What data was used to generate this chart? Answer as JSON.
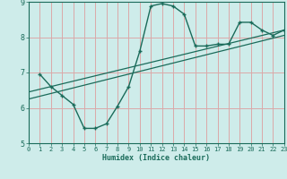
{
  "xlabel": "Humidex (Indice chaleur)",
  "xlim": [
    0,
    23
  ],
  "ylim": [
    5,
    9
  ],
  "xticks": [
    0,
    1,
    2,
    3,
    4,
    5,
    6,
    7,
    8,
    9,
    10,
    11,
    12,
    13,
    14,
    15,
    16,
    17,
    18,
    19,
    20,
    21,
    22,
    23
  ],
  "yticks": [
    5,
    6,
    7,
    8,
    9
  ],
  "bg_color": "#ceecea",
  "grid_color": "#dba8a8",
  "line_color": "#1a6b5a",
  "curve_x": [
    1,
    2,
    3,
    4,
    5,
    6,
    7,
    8,
    9,
    10,
    11,
    12,
    13,
    14,
    15,
    16,
    17,
    18,
    19,
    20,
    21,
    22,
    23
  ],
  "curve_y": [
    6.95,
    6.6,
    6.35,
    6.1,
    5.42,
    5.42,
    5.55,
    6.05,
    6.6,
    7.6,
    8.88,
    8.95,
    8.88,
    8.65,
    7.75,
    7.75,
    7.8,
    7.8,
    8.42,
    8.42,
    8.2,
    8.05,
    8.2
  ],
  "line1_x": [
    0,
    23
  ],
  "line1_y": [
    6.25,
    8.05
  ],
  "line2_x": [
    0,
    23
  ],
  "line2_y": [
    6.45,
    8.2
  ]
}
